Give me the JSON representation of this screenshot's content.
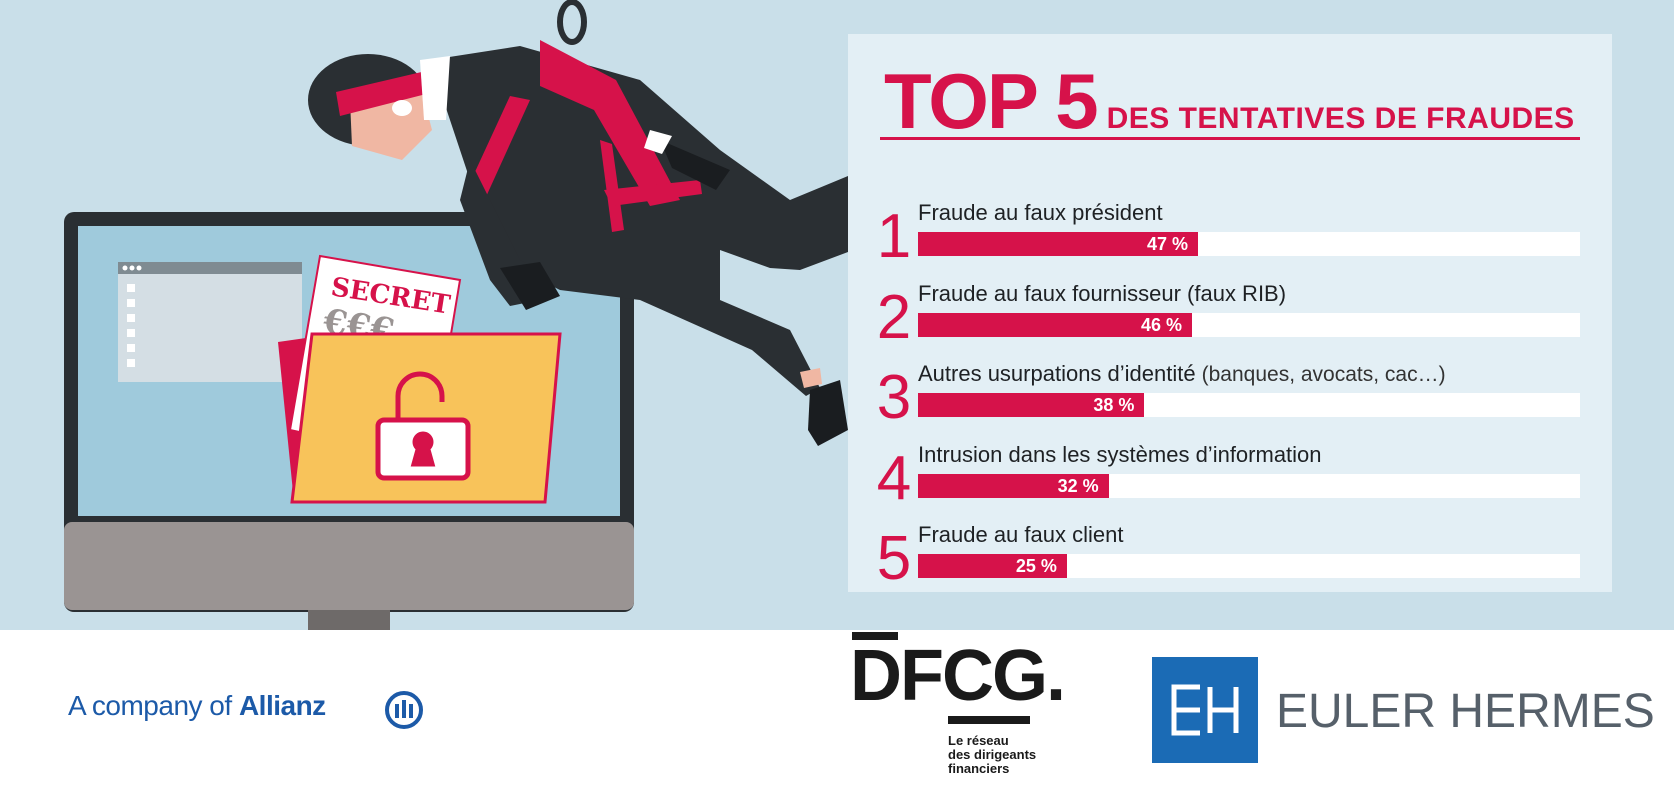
{
  "header": {
    "title_big": "TOP 5",
    "title_small": "DES TENTATIVES DE FRAUDES"
  },
  "illustration": {
    "secret_label": "SECRET",
    "euro_label": "€€€"
  },
  "chart_data": {
    "type": "bar",
    "title": "TOP 5 DES TENTATIVES DE FRAUDES",
    "xlim": [
      0,
      100
    ],
    "categories": [
      "Fraude au faux président",
      "Fraude au faux fournisseur (faux RIB)",
      "Autres usurpations d’identité (banques, avocats, cac…)",
      "Intrusion dans les systèmes d’information",
      "Fraude au faux client"
    ],
    "values": [
      47,
      46,
      38,
      32,
      25
    ],
    "unit": "%",
    "orientation": "horizontal"
  },
  "items": [
    {
      "rank": "1",
      "label": "Fraude au faux président",
      "detail": "",
      "value": 47,
      "value_label": "47 %"
    },
    {
      "rank": "2",
      "label": "Fraude au faux fournisseur (faux RIB)",
      "detail": "",
      "value": 46,
      "value_label": "46 %"
    },
    {
      "rank": "3",
      "label": "Autres usurpations d’identité",
      "detail": "(banques, avocats, cac…)",
      "value": 38,
      "value_label": "38 %"
    },
    {
      "rank": "4",
      "label": "Intrusion dans les systèmes d’information",
      "detail": "",
      "value": 32,
      "value_label": "32 %"
    },
    {
      "rank": "5",
      "label": "Fraude au faux client",
      "detail": "",
      "value": 25,
      "value_label": "25 %"
    }
  ],
  "footer": {
    "allianz_prefix": "A company of",
    "allianz_name": "Allianz",
    "dfcg_name": "DFCG.",
    "dfcg_tagline": [
      "Le réseau",
      "des dirigeants",
      "financiers"
    ],
    "euler_mark": "EH",
    "euler_name": "EULER HERMES"
  },
  "colors": {
    "accent": "#d6124a",
    "background": "#c9dfe9",
    "panel": "#e3eff5",
    "allianz_blue": "#1c5aa8",
    "euler_blue": "#1b6bb5"
  }
}
